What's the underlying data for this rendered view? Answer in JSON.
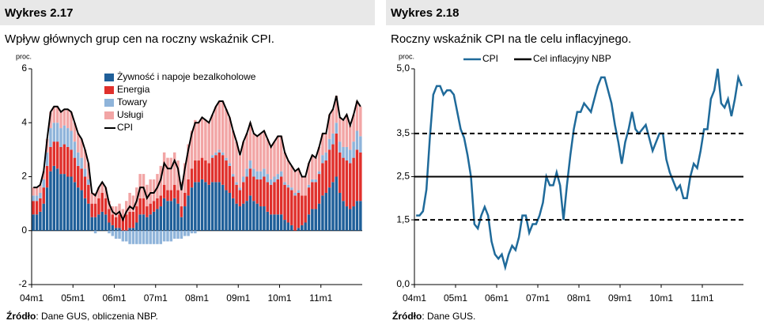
{
  "chart_data": [
    {
      "type": "bar",
      "header": "Wykres 2.17",
      "title": "Wpływ głównych grup cen na roczny wskaźnik CPI.",
      "y_unit": "proc.",
      "stacked": true,
      "source_label": "Źródło",
      "source_text": ": Dane GUS, obliczenia NBP.",
      "categories": [
        "04m1",
        null,
        null,
        null,
        null,
        null,
        null,
        null,
        null,
        null,
        null,
        null,
        "05m1",
        null,
        null,
        null,
        null,
        null,
        null,
        null,
        null,
        null,
        null,
        null,
        "06m1",
        null,
        null,
        null,
        null,
        null,
        null,
        null,
        null,
        null,
        null,
        null,
        "07m1",
        null,
        null,
        null,
        null,
        null,
        null,
        null,
        null,
        null,
        null,
        null,
        "08m1",
        null,
        null,
        null,
        null,
        null,
        null,
        null,
        null,
        null,
        null,
        null,
        "09m1",
        null,
        null,
        null,
        null,
        null,
        null,
        null,
        null,
        null,
        null,
        null,
        "10m1",
        null,
        null,
        null,
        null,
        null,
        null,
        null,
        null,
        null,
        null,
        null,
        "11m1",
        null,
        null,
        null,
        null,
        null,
        null,
        null,
        null,
        null,
        null,
        null
      ],
      "ylim": [
        -2,
        6
      ],
      "yticks": [
        -2,
        0,
        2,
        4,
        6
      ],
      "legend": "upper-left",
      "series": [
        {
          "name": "Żywność i napoje bezalkoholowe",
          "color": "#1f5f99",
          "values": [
            0.6,
            0.6,
            0.7,
            1.0,
            1.6,
            2.2,
            2.4,
            2.3,
            2.1,
            2.1,
            2.0,
            2.0,
            1.8,
            1.6,
            1.5,
            1.2,
            1.0,
            0.5,
            0.5,
            0.6,
            0.7,
            0.6,
            0.3,
            0.2,
            0.1,
            0.1,
            0.0,
            0.0,
            0.1,
            0.1,
            0.3,
            0.6,
            0.6,
            0.5,
            0.6,
            0.7,
            0.8,
            0.9,
            1.2,
            1.1,
            1.1,
            1.2,
            1.0,
            0.5,
            0.9,
            1.3,
            1.6,
            1.8,
            1.8,
            1.9,
            1.8,
            1.7,
            1.8,
            1.8,
            1.8,
            1.7,
            1.5,
            1.4,
            1.2,
            1.0,
            0.9,
            1.0,
            1.1,
            1.3,
            1.1,
            1.0,
            0.9,
            0.9,
            0.7,
            0.6,
            0.6,
            0.6,
            0.6,
            0.4,
            0.3,
            0.2,
            0.0,
            0.1,
            0.2,
            0.3,
            0.6,
            0.8,
            0.8,
            1.0,
            1.3,
            1.4,
            1.6,
            1.8,
            2.0,
            1.4,
            1.1,
            0.9,
            0.8,
            0.9,
            1.1,
            1.1
          ]
        },
        {
          "name": "Energia",
          "color": "#e0302c",
          "values": [
            0.5,
            0.5,
            0.5,
            0.6,
            0.8,
            0.9,
            0.9,
            1.0,
            1.0,
            1.1,
            1.1,
            1.0,
            0.9,
            0.8,
            0.8,
            0.8,
            0.7,
            0.5,
            0.5,
            0.6,
            0.7,
            0.6,
            0.5,
            0.4,
            0.4,
            0.5,
            0.5,
            0.6,
            0.6,
            0.6,
            0.6,
            0.6,
            0.6,
            0.4,
            0.4,
            0.4,
            0.4,
            0.4,
            0.5,
            0.4,
            0.4,
            0.5,
            0.5,
            0.4,
            0.5,
            0.6,
            0.7,
            0.8,
            0.8,
            0.8,
            0.8,
            0.8,
            0.9,
            1.0,
            1.1,
            1.1,
            1.1,
            1.0,
            0.8,
            0.7,
            0.6,
            0.8,
            0.9,
            1.0,
            0.9,
            0.9,
            1.0,
            1.1,
            1.1,
            1.1,
            1.2,
            1.3,
            1.4,
            1.3,
            1.3,
            1.3,
            1.3,
            1.3,
            1.1,
            1.0,
            1.0,
            1.0,
            1.0,
            1.1,
            1.2,
            1.2,
            1.4,
            1.4,
            1.6,
            1.5,
            1.6,
            1.7,
            1.7,
            1.8,
            1.9,
            1.8
          ]
        },
        {
          "name": "Towary",
          "color": "#8fb4da",
          "values": [
            0.2,
            0.2,
            0.2,
            0.3,
            0.5,
            0.7,
            0.7,
            0.7,
            0.7,
            0.7,
            0.7,
            0.7,
            0.6,
            0.5,
            0.4,
            0.3,
            0.2,
            0.0,
            -0.1,
            0.0,
            0.0,
            0.0,
            -0.1,
            -0.2,
            -0.3,
            -0.3,
            -0.4,
            -0.4,
            -0.5,
            -0.5,
            -0.5,
            -0.5,
            -0.5,
            -0.5,
            -0.5,
            -0.5,
            -0.5,
            -0.5,
            -0.4,
            -0.4,
            -0.4,
            -0.3,
            -0.3,
            -0.3,
            -0.2,
            -0.2,
            -0.1,
            -0.1,
            0.0,
            0.0,
            0.0,
            0.0,
            0.1,
            0.1,
            0.1,
            0.1,
            0.1,
            0.1,
            0.1,
            0.1,
            0.1,
            0.2,
            0.3,
            0.3,
            0.3,
            0.3,
            0.3,
            0.3,
            0.3,
            0.2,
            0.2,
            0.2,
            0.2,
            0.1,
            0.1,
            0.1,
            0.1,
            0.1,
            0.0,
            0.0,
            0.1,
            0.1,
            0.1,
            0.1,
            0.3,
            0.3,
            0.4,
            0.4,
            0.4,
            0.4,
            0.4,
            0.5,
            0.5,
            0.6,
            0.7,
            0.6
          ]
        },
        {
          "name": "Usługi",
          "color": "#f2a5a5",
          "values": [
            0.3,
            0.3,
            0.3,
            0.3,
            0.5,
            0.6,
            0.6,
            0.6,
            0.6,
            0.6,
            0.7,
            0.7,
            0.7,
            0.7,
            0.7,
            0.7,
            0.6,
            0.4,
            0.4,
            0.4,
            0.4,
            0.4,
            0.3,
            0.3,
            0.4,
            0.4,
            0.3,
            0.5,
            0.7,
            0.6,
            0.7,
            0.9,
            0.9,
            0.8,
            0.9,
            0.8,
            0.9,
            1.1,
            1.2,
            1.2,
            1.2,
            1.2,
            1.1,
            0.9,
            1.1,
            1.3,
            1.4,
            1.5,
            1.4,
            1.5,
            1.5,
            1.5,
            1.5,
            1.7,
            1.8,
            1.9,
            1.8,
            1.7,
            1.6,
            1.5,
            1.2,
            1.3,
            1.3,
            1.4,
            1.3,
            1.3,
            1.4,
            1.4,
            1.3,
            1.2,
            1.3,
            1.4,
            1.3,
            1.1,
            0.9,
            0.8,
            0.8,
            0.8,
            0.7,
            0.7,
            0.8,
            0.9,
            0.8,
            0.9,
            0.8,
            0.7,
            0.9,
            0.9,
            1.0,
            0.9,
            1.0,
            1.2,
            0.9,
            1.0,
            1.1,
            1.1
          ]
        },
        {
          "name": "CPI",
          "type": "line",
          "color": "#000000",
          "values": [
            1.6,
            1.6,
            1.7,
            2.2,
            3.4,
            4.4,
            4.6,
            4.6,
            4.4,
            4.5,
            4.5,
            4.4,
            4.0,
            3.6,
            3.4,
            3.0,
            2.5,
            1.4,
            1.3,
            1.6,
            1.8,
            1.6,
            1.0,
            0.7,
            0.6,
            0.7,
            0.4,
            0.7,
            0.9,
            0.8,
            1.1,
            1.6,
            1.6,
            1.2,
            1.4,
            1.4,
            1.6,
            1.9,
            2.5,
            2.3,
            2.3,
            2.6,
            2.3,
            1.5,
            2.3,
            3.0,
            3.6,
            4.0,
            4.0,
            4.2,
            4.1,
            4.0,
            4.3,
            4.6,
            4.8,
            4.8,
            4.5,
            4.2,
            3.7,
            3.3,
            2.8,
            3.3,
            3.6,
            4.0,
            3.6,
            3.5,
            3.6,
            3.7,
            3.4,
            3.1,
            3.3,
            3.5,
            3.5,
            2.9,
            2.6,
            2.4,
            2.2,
            2.3,
            2.0,
            2.0,
            2.5,
            2.8,
            2.7,
            3.1,
            3.6,
            3.6,
            4.3,
            4.5,
            5.0,
            4.2,
            4.1,
            4.3,
            3.9,
            4.3,
            4.8,
            4.6
          ]
        }
      ]
    },
    {
      "type": "line",
      "header": "Wykres 2.18",
      "title": "Roczny wskaźnik CPI na tle celu inflacyjnego.",
      "y_unit": "proc.",
      "source_label": "Źródło",
      "source_text": ": Dane GUS.",
      "categories": [
        "04m1",
        null,
        null,
        null,
        null,
        null,
        null,
        null,
        null,
        null,
        null,
        null,
        "05m1",
        null,
        null,
        null,
        null,
        null,
        null,
        null,
        null,
        null,
        null,
        null,
        "06m1",
        null,
        null,
        null,
        null,
        null,
        null,
        null,
        null,
        null,
        null,
        null,
        "07m1",
        null,
        null,
        null,
        null,
        null,
        null,
        null,
        null,
        null,
        null,
        null,
        "08m1",
        null,
        null,
        null,
        null,
        null,
        null,
        null,
        null,
        null,
        null,
        null,
        "09m1",
        null,
        null,
        null,
        null,
        null,
        null,
        null,
        null,
        null,
        null,
        null,
        "10m1",
        null,
        null,
        null,
        null,
        null,
        null,
        null,
        null,
        null,
        null,
        null,
        "11m1",
        null,
        null,
        null,
        null,
        null,
        null,
        null,
        null,
        null,
        null,
        null
      ],
      "ylim": [
        0,
        5
      ],
      "yticks": [
        {
          "value": 0,
          "label": "0,0"
        },
        {
          "value": 1.5,
          "label": "1,5"
        },
        {
          "value": 2.5,
          "label": "2,5"
        },
        {
          "value": 3.5,
          "label": "3,5"
        },
        {
          "value": 5,
          "label": "5,0"
        }
      ],
      "legend": "top",
      "series": [
        {
          "name": "CPI",
          "color": "#1f6a9a",
          "values": [
            1.6,
            1.6,
            1.7,
            2.2,
            3.4,
            4.4,
            4.6,
            4.6,
            4.4,
            4.5,
            4.5,
            4.4,
            4.0,
            3.6,
            3.4,
            3.0,
            2.5,
            1.4,
            1.3,
            1.6,
            1.8,
            1.6,
            1.0,
            0.7,
            0.6,
            0.7,
            0.4,
            0.7,
            0.9,
            0.8,
            1.1,
            1.6,
            1.6,
            1.2,
            1.4,
            1.4,
            1.6,
            1.9,
            2.5,
            2.3,
            2.3,
            2.6,
            2.3,
            1.5,
            2.3,
            3.0,
            3.6,
            4.0,
            4.0,
            4.2,
            4.1,
            4.0,
            4.3,
            4.6,
            4.8,
            4.8,
            4.5,
            4.2,
            3.7,
            3.3,
            2.8,
            3.3,
            3.6,
            4.0,
            3.6,
            3.5,
            3.6,
            3.7,
            3.4,
            3.1,
            3.3,
            3.5,
            3.5,
            2.9,
            2.6,
            2.4,
            2.2,
            2.3,
            2.0,
            2.0,
            2.5,
            2.8,
            2.7,
            3.1,
            3.6,
            3.6,
            4.3,
            4.5,
            5.0,
            4.2,
            4.1,
            4.3,
            3.9,
            4.3,
            4.8,
            4.6
          ]
        },
        {
          "name": "Cel inflacyjny NBP",
          "type": "reference",
          "color": "#000000",
          "value": 2.5,
          "band": [
            1.5,
            3.5
          ]
        }
      ]
    }
  ]
}
